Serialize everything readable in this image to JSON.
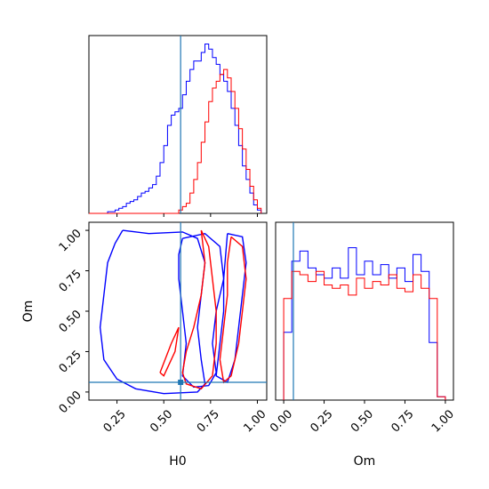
{
  "chart_data": [
    {
      "type": "histogram",
      "panel": "H0 marginal",
      "parameter": "H0",
      "bin_edges": [
        0.2,
        0.25,
        0.3,
        0.35,
        0.4,
        0.45,
        0.5,
        0.55,
        0.6,
        0.65,
        0.7,
        0.75,
        0.8,
        0.85,
        0.9,
        0.95,
        1.0
      ],
      "truth_line": 0.59,
      "series": [
        {
          "color": "#0000ff",
          "x": [
            0.1,
            0.12,
            0.14,
            0.16,
            0.18,
            0.2,
            0.22,
            0.24,
            0.26,
            0.28,
            0.3,
            0.32,
            0.34,
            0.36,
            0.38,
            0.4,
            0.42,
            0.44,
            0.46,
            0.48,
            0.5,
            0.52,
            0.54,
            0.56,
            0.58,
            0.6,
            0.62,
            0.64,
            0.66,
            0.68,
            0.7,
            0.72,
            0.74,
            0.76,
            0.78,
            0.8,
            0.82,
            0.84,
            0.86,
            0.88,
            0.9,
            0.92,
            0.94,
            0.96,
            0.98,
            1.0
          ],
          "values": [
            0,
            0,
            0,
            0,
            0,
            0.01,
            0.01,
            0.02,
            0.03,
            0.04,
            0.06,
            0.07,
            0.08,
            0.1,
            0.12,
            0.13,
            0.15,
            0.17,
            0.22,
            0.3,
            0.4,
            0.52,
            0.58,
            0.6,
            0.62,
            0.7,
            0.78,
            0.85,
            0.9,
            0.9,
            0.95,
            1.0,
            0.97,
            0.92,
            0.88,
            0.82,
            0.78,
            0.72,
            0.62,
            0.52,
            0.4,
            0.28,
            0.2,
            0.12,
            0.05,
            0.02
          ]
        },
        {
          "color": "#ff0000",
          "x": [
            0.1,
            0.12,
            0.14,
            0.16,
            0.18,
            0.2,
            0.22,
            0.24,
            0.26,
            0.28,
            0.3,
            0.32,
            0.34,
            0.36,
            0.38,
            0.4,
            0.42,
            0.44,
            0.46,
            0.48,
            0.5,
            0.52,
            0.54,
            0.56,
            0.58,
            0.6,
            0.62,
            0.64,
            0.66,
            0.68,
            0.7,
            0.72,
            0.74,
            0.76,
            0.78,
            0.8,
            0.82,
            0.84,
            0.86,
            0.88,
            0.9,
            0.92,
            0.94,
            0.96,
            0.98,
            1.0
          ],
          "values": [
            0,
            0,
            0,
            0,
            0,
            0,
            0,
            0,
            0,
            0,
            0,
            0,
            0,
            0,
            0,
            0,
            0,
            0,
            0,
            0,
            0,
            0,
            0,
            0,
            0.02,
            0.04,
            0.06,
            0.12,
            0.2,
            0.3,
            0.42,
            0.54,
            0.66,
            0.74,
            0.78,
            0.82,
            0.85,
            0.8,
            0.72,
            0.62,
            0.5,
            0.38,
            0.26,
            0.16,
            0.08,
            0.03
          ]
        }
      ],
      "xlim": [
        0.1,
        1.05
      ],
      "x_ticks": [
        "0.25",
        "0.50",
        "0.75",
        "1.00"
      ]
    },
    {
      "type": "contour",
      "panel": "H0-Om joint",
      "xlabel": "H0",
      "ylabel": "Om",
      "xlim": [
        0.1,
        1.05
      ],
      "ylim": [
        -0.05,
        1.05
      ],
      "truth_point": {
        "H0": 0.59,
        "Om": 0.06
      },
      "series": [
        {
          "color": "#0000ff",
          "levels": [
            [
              [
                0.28,
                1.0
              ],
              [
                0.42,
                0.98
              ],
              [
                0.6,
                0.99
              ],
              [
                0.68,
                0.95
              ],
              [
                0.72,
                0.8
              ],
              [
                0.7,
                0.6
              ],
              [
                0.68,
                0.4
              ],
              [
                0.7,
                0.2
              ],
              [
                0.72,
                0.05
              ],
              [
                0.68,
                0.0
              ],
              [
                0.5,
                -0.01
              ],
              [
                0.35,
                0.02
              ],
              [
                0.25,
                0.08
              ],
              [
                0.18,
                0.2
              ],
              [
                0.16,
                0.4
              ],
              [
                0.18,
                0.6
              ],
              [
                0.2,
                0.8
              ],
              [
                0.24,
                0.92
              ],
              [
                0.28,
                1.0
              ]
            ],
            [
              [
                0.6,
                0.95
              ],
              [
                0.72,
                0.98
              ],
              [
                0.8,
                0.9
              ],
              [
                0.82,
                0.7
              ],
              [
                0.78,
                0.5
              ],
              [
                0.76,
                0.3
              ],
              [
                0.78,
                0.12
              ],
              [
                0.74,
                0.04
              ],
              [
                0.66,
                0.03
              ],
              [
                0.6,
                0.1
              ],
              [
                0.62,
                0.3
              ],
              [
                0.6,
                0.5
              ],
              [
                0.58,
                0.7
              ],
              [
                0.58,
                0.85
              ],
              [
                0.6,
                0.95
              ]
            ],
            [
              [
                0.84,
                0.98
              ],
              [
                0.92,
                0.96
              ],
              [
                0.94,
                0.8
              ],
              [
                0.92,
                0.6
              ],
              [
                0.9,
                0.4
              ],
              [
                0.88,
                0.2
              ],
              [
                0.84,
                0.06
              ],
              [
                0.78,
                0.1
              ],
              [
                0.8,
                0.3
              ],
              [
                0.82,
                0.5
              ],
              [
                0.82,
                0.7
              ],
              [
                0.84,
                0.98
              ]
            ]
          ]
        },
        {
          "color": "#ff0000",
          "levels": [
            [
              [
                0.7,
                1.0
              ],
              [
                0.72,
                0.8
              ],
              [
                0.7,
                0.6
              ],
              [
                0.66,
                0.4
              ],
              [
                0.62,
                0.25
              ],
              [
                0.6,
                0.12
              ],
              [
                0.62,
                0.05
              ],
              [
                0.7,
                0.02
              ],
              [
                0.76,
                0.1
              ],
              [
                0.78,
                0.3
              ],
              [
                0.78,
                0.5
              ],
              [
                0.76,
                0.7
              ],
              [
                0.74,
                0.9
              ],
              [
                0.7,
                1.0
              ]
            ],
            [
              [
                0.48,
                0.12
              ],
              [
                0.54,
                0.3
              ],
              [
                0.58,
                0.4
              ],
              [
                0.56,
                0.25
              ],
              [
                0.5,
                0.1
              ],
              [
                0.48,
                0.12
              ]
            ],
            [
              [
                0.86,
                0.96
              ],
              [
                0.92,
                0.9
              ],
              [
                0.94,
                0.7
              ],
              [
                0.92,
                0.5
              ],
              [
                0.9,
                0.3
              ],
              [
                0.86,
                0.1
              ],
              [
                0.82,
                0.06
              ],
              [
                0.8,
                0.2
              ],
              [
                0.82,
                0.4
              ],
              [
                0.84,
                0.6
              ],
              [
                0.84,
                0.8
              ],
              [
                0.86,
                0.96
              ]
            ]
          ]
        }
      ],
      "x_ticks": [
        "0.25",
        "0.50",
        "0.75",
        "1.00"
      ],
      "y_ticks": [
        "0.00",
        "0.25",
        "0.50",
        "0.75",
        "1.00"
      ]
    },
    {
      "type": "histogram",
      "panel": "Om marginal",
      "xlabel": "Om",
      "truth_line": 0.06,
      "xlim": [
        -0.05,
        1.05
      ],
      "series": [
        {
          "color": "#0000ff",
          "x": [
            0.0,
            0.05,
            0.1,
            0.15,
            0.2,
            0.25,
            0.3,
            0.35,
            0.4,
            0.45,
            0.5,
            0.55,
            0.6,
            0.65,
            0.7,
            0.75,
            0.8,
            0.85,
            0.9,
            0.95
          ],
          "values": [
            0.4,
            0.82,
            0.88,
            0.78,
            0.74,
            0.72,
            0.78,
            0.72,
            0.9,
            0.74,
            0.82,
            0.74,
            0.8,
            0.72,
            0.78,
            0.7,
            0.86,
            0.76,
            0.34,
            0.02
          ]
        },
        {
          "color": "#ff0000",
          "x": [
            0.0,
            0.05,
            0.1,
            0.15,
            0.2,
            0.25,
            0.3,
            0.35,
            0.4,
            0.45,
            0.5,
            0.55,
            0.6,
            0.65,
            0.7,
            0.75,
            0.8,
            0.85,
            0.9,
            0.95
          ],
          "values": [
            0.6,
            0.76,
            0.74,
            0.7,
            0.76,
            0.68,
            0.66,
            0.68,
            0.62,
            0.72,
            0.66,
            0.7,
            0.68,
            0.74,
            0.66,
            0.64,
            0.74,
            0.66,
            0.6,
            0.02
          ]
        }
      ],
      "x_ticks": [
        "0.00",
        "0.25",
        "0.50",
        "0.75",
        "1.00"
      ]
    }
  ],
  "colors": {
    "series_a": "#0000ff",
    "series_b": "#ff0000",
    "truth": "#1f77b4"
  }
}
